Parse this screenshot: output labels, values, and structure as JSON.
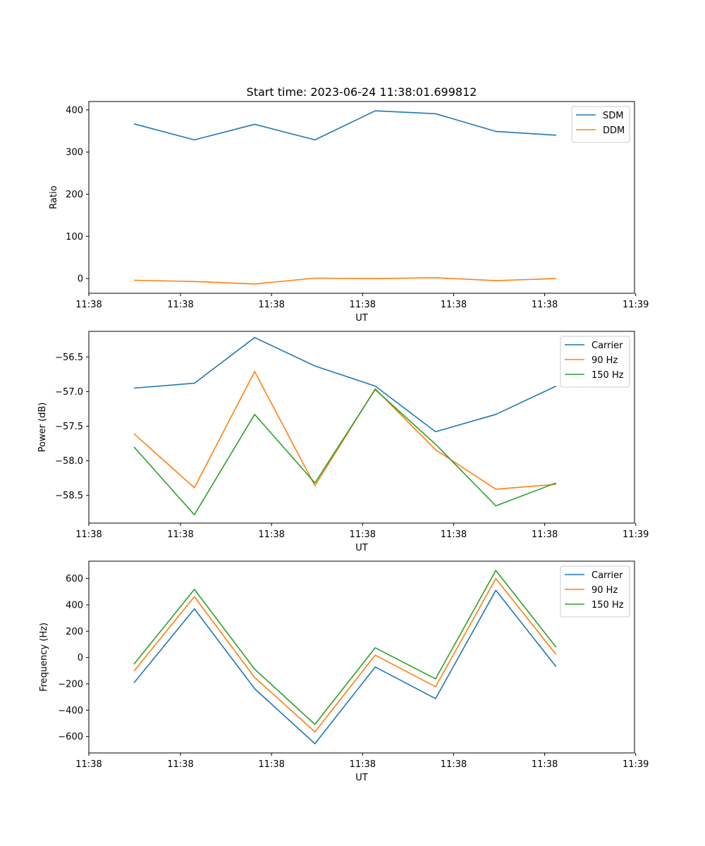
{
  "figure": {
    "title": "Start time: 2023-06-24 11:38:01.699812"
  },
  "chart_data": [
    {
      "type": "line",
      "title": "Start time: 2023-06-24 11:38:01.699812",
      "xlabel": "UT",
      "ylabel": "Ratio",
      "x_index": [
        0,
        1,
        2,
        3,
        4,
        5,
        6,
        7
      ],
      "xlim": [
        -0.75,
        8.3
      ],
      "x_ticks": [
        {
          "pos": -0.75,
          "label": "11:38"
        },
        {
          "pos": 0.77,
          "label": "11:38"
        },
        {
          "pos": 2.28,
          "label": "11:38"
        },
        {
          "pos": 3.79,
          "label": "11:38"
        },
        {
          "pos": 5.3,
          "label": "11:38"
        },
        {
          "pos": 6.81,
          "label": "11:38"
        },
        {
          "pos": 8.32,
          "label": "11:39"
        }
      ],
      "ylim": [
        -35,
        420
      ],
      "y_ticks": [
        0,
        100,
        200,
        300,
        400
      ],
      "y_tick_labels": [
        "0",
        "100",
        "200",
        "300",
        "400"
      ],
      "legend_position": "upper right",
      "series": [
        {
          "name": "SDM",
          "color": "#1f77b4",
          "values": [
            367,
            329,
            366,
            329,
            398,
            391,
            349,
            340
          ]
        },
        {
          "name": "DDM",
          "color": "#ff7f0e",
          "values": [
            -4,
            -7,
            -13,
            1,
            0,
            2,
            -5,
            0
          ]
        }
      ]
    },
    {
      "type": "line",
      "xlabel": "UT",
      "ylabel": "Power (dB)",
      "x_index": [
        0,
        1,
        2,
        3,
        4,
        5,
        6,
        7
      ],
      "xlim": [
        -0.75,
        8.3
      ],
      "x_ticks": [
        {
          "pos": -0.75,
          "label": "11:38"
        },
        {
          "pos": 0.77,
          "label": "11:38"
        },
        {
          "pos": 2.28,
          "label": "11:38"
        },
        {
          "pos": 3.79,
          "label": "11:38"
        },
        {
          "pos": 5.3,
          "label": "11:38"
        },
        {
          "pos": 6.81,
          "label": "11:38"
        },
        {
          "pos": 8.32,
          "label": "11:39"
        }
      ],
      "ylim": [
        -58.9,
        -56.13
      ],
      "y_ticks": [
        -56.5,
        -57.0,
        -57.5,
        -58.0,
        -58.5
      ],
      "y_tick_labels": [
        "−56.5",
        "−57.0",
        "−57.5",
        "−58.0",
        "−58.5"
      ],
      "legend_position": "upper right",
      "series": [
        {
          "name": "Carrier",
          "color": "#1f77b4",
          "values": [
            -56.95,
            -56.88,
            -56.22,
            -56.63,
            -56.92,
            -57.58,
            -57.33,
            -56.92
          ]
        },
        {
          "name": "90 Hz",
          "color": "#ff7f0e",
          "values": [
            -57.61,
            -58.39,
            -56.71,
            -58.36,
            -56.96,
            -57.84,
            -58.41,
            -58.34
          ]
        },
        {
          "name": "150 Hz",
          "color": "#2ca02c",
          "values": [
            -57.8,
            -58.78,
            -57.33,
            -58.32,
            -56.97,
            -57.76,
            -58.65,
            -58.32
          ]
        }
      ]
    },
    {
      "type": "line",
      "xlabel": "UT",
      "ylabel": "Frequency (Hz)",
      "x_index": [
        0,
        1,
        2,
        3,
        4,
        5,
        6,
        7
      ],
      "xlim": [
        -0.75,
        8.3
      ],
      "x_ticks": [
        {
          "pos": -0.75,
          "label": "11:38"
        },
        {
          "pos": 0.77,
          "label": "11:38"
        },
        {
          "pos": 2.28,
          "label": "11:38"
        },
        {
          "pos": 3.79,
          "label": "11:38"
        },
        {
          "pos": 5.3,
          "label": "11:38"
        },
        {
          "pos": 6.81,
          "label": "11:38"
        },
        {
          "pos": 8.32,
          "label": "11:39"
        }
      ],
      "ylim": [
        -725,
        732
      ],
      "y_ticks": [
        600,
        400,
        200,
        0,
        -200,
        -400,
        -600
      ],
      "y_tick_labels": [
        "600",
        "400",
        "200",
        "0",
        "−200",
        "−400",
        "−600"
      ],
      "legend_position": "upper right",
      "series": [
        {
          "name": "Carrier",
          "color": "#1f77b4",
          "values": [
            -192,
            370,
            -237,
            -655,
            -72,
            -312,
            511,
            -70
          ]
        },
        {
          "name": "90 Hz",
          "color": "#ff7f0e",
          "values": [
            -102,
            462,
            -152,
            -565,
            18,
            -222,
            600,
            22
          ]
        },
        {
          "name": "150 Hz",
          "color": "#2ca02c",
          "values": [
            -50,
            518,
            -88,
            -508,
            74,
            -162,
            662,
            78
          ]
        }
      ]
    }
  ]
}
